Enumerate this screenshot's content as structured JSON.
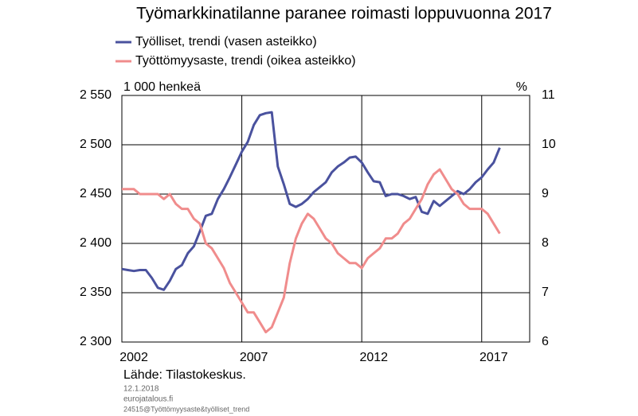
{
  "chart_data": {
    "type": "line",
    "title": "Työmarkkinatilanne paranee roimasti loppuvuonna 2017",
    "y_unit_label": "1 000 henkeä",
    "y2_unit_label": "%",
    "source": "Lähde: Tilastokeskus.",
    "date": "12.1.2018",
    "site": "eurojatalous.fi",
    "file_id": "24515@Työttömyysaste&työlliset_trend",
    "x": [
      2002.0,
      2002.25,
      2002.5,
      2002.75,
      2003.0,
      2003.25,
      2003.5,
      2003.75,
      2004.0,
      2004.25,
      2004.5,
      2004.75,
      2005.0,
      2005.25,
      2005.5,
      2005.75,
      2006.0,
      2006.25,
      2006.5,
      2006.75,
      2007.0,
      2007.25,
      2007.5,
      2007.75,
      2008.0,
      2008.25,
      2008.5,
      2008.75,
      2009.0,
      2009.25,
      2009.5,
      2009.75,
      2010.0,
      2010.25,
      2010.5,
      2010.75,
      2011.0,
      2011.25,
      2011.5,
      2011.75,
      2012.0,
      2012.25,
      2012.5,
      2012.75,
      2013.0,
      2013.25,
      2013.5,
      2013.75,
      2014.0,
      2014.25,
      2014.5,
      2014.75,
      2015.0,
      2015.25,
      2015.5,
      2015.75,
      2016.0,
      2016.25,
      2016.5,
      2016.75,
      2017.0,
      2017.25,
      2017.5,
      2017.75
    ],
    "series": [
      {
        "name": "Työlliset, trendi (vasen asteikko)",
        "color": "#4a529e",
        "axis": "y",
        "values": [
          2374,
          2373,
          2372,
          2373,
          2373,
          2365,
          2355,
          2353,
          2362,
          2374,
          2378,
          2390,
          2397,
          2412,
          2428,
          2430,
          2445,
          2455,
          2467,
          2480,
          2493,
          2503,
          2520,
          2530,
          2532,
          2533,
          2478,
          2460,
          2440,
          2437,
          2440,
          2445,
          2452,
          2457,
          2462,
          2472,
          2478,
          2482,
          2487,
          2488,
          2482,
          2472,
          2463,
          2462,
          2448,
          2450,
          2450,
          2448,
          2445,
          2447,
          2432,
          2430,
          2443,
          2438,
          2443,
          2448,
          2453,
          2450,
          2455,
          2462,
          2467,
          2475,
          2482,
          2497
        ]
      },
      {
        "name": "Työttömyysaste, trendi (oikea asteikko)",
        "color": "#f08c8c",
        "axis": "y2",
        "values": [
          9.1,
          9.1,
          9.1,
          9.0,
          9.0,
          9.0,
          9.0,
          8.9,
          9.0,
          8.8,
          8.7,
          8.7,
          8.5,
          8.4,
          8.0,
          7.9,
          7.7,
          7.5,
          7.2,
          7.0,
          6.8,
          6.6,
          6.6,
          6.4,
          6.2,
          6.3,
          6.6,
          6.9,
          7.6,
          8.1,
          8.4,
          8.6,
          8.5,
          8.3,
          8.1,
          8.0,
          7.8,
          7.7,
          7.6,
          7.6,
          7.5,
          7.7,
          7.8,
          7.9,
          8.1,
          8.1,
          8.2,
          8.4,
          8.5,
          8.7,
          8.9,
          9.2,
          9.4,
          9.5,
          9.3,
          9.1,
          9.0,
          8.8,
          8.7,
          8.7,
          8.7,
          8.6,
          8.4,
          8.2
        ]
      }
    ],
    "xlim": [
      2002,
      2019
    ],
    "xticks": [
      2002,
      2007,
      2012,
      2017
    ],
    "ylim": [
      2300,
      2550
    ],
    "yticks": [
      {
        "value": 2300,
        "label": "2 300"
      },
      {
        "value": 2350,
        "label": "2 350"
      },
      {
        "value": 2400,
        "label": "2 400"
      },
      {
        "value": 2450,
        "label": "2 450"
      },
      {
        "value": 2500,
        "label": "2 500"
      },
      {
        "value": 2550,
        "label": "2 550"
      }
    ],
    "y2lim": [
      6,
      11
    ],
    "y2ticks": [
      6,
      7,
      8,
      9,
      10,
      11
    ],
    "grid": true
  }
}
